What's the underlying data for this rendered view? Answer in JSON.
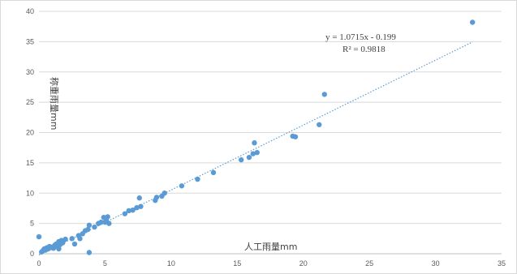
{
  "chart_data": {
    "type": "scatter",
    "xlabel": "人工雨量mm",
    "ylabel": "称重雨量mm",
    "xlim": [
      0,
      35
    ],
    "ylim": [
      0,
      40
    ],
    "xticks": [
      0,
      5,
      10,
      15,
      20,
      25,
      30,
      35
    ],
    "yticks": [
      0,
      5,
      10,
      15,
      20,
      25,
      30,
      35,
      40
    ],
    "grid": "horizontal",
    "colors": {
      "points": "#5b9bd5",
      "trendline": "#5b9bd5",
      "grid": "#d9d9d9"
    },
    "trendline": {
      "type": "linear",
      "slope": 1.0715,
      "intercept": -0.199,
      "x_range": [
        0,
        32.8
      ]
    },
    "annotations": {
      "equation": "y = 1.0715x - 0.199",
      "r_squared": "R² = 0.9818"
    },
    "points": [
      [
        0,
        2.8
      ],
      [
        0.2,
        0.3
      ],
      [
        0.3,
        0.5
      ],
      [
        0.4,
        0.8
      ],
      [
        0.5,
        0.6
      ],
      [
        0.6,
        1.0
      ],
      [
        0.7,
        0.8
      ],
      [
        0.8,
        1.2
      ],
      [
        0.9,
        1.0
      ],
      [
        1.0,
        1.1
      ],
      [
        1.1,
        0.9
      ],
      [
        1.2,
        1.4
      ],
      [
        1.3,
        1.6
      ],
      [
        1.4,
        1.2
      ],
      [
        1.5,
        2.0
      ],
      [
        1.5,
        0.8
      ],
      [
        1.6,
        1.5
      ],
      [
        1.7,
        2.2
      ],
      [
        1.8,
        1.8
      ],
      [
        2.0,
        2.4
      ],
      [
        2.5,
        2.5
      ],
      [
        2.7,
        1.6
      ],
      [
        3.0,
        3.0
      ],
      [
        3.1,
        2.5
      ],
      [
        3.3,
        3.3
      ],
      [
        3.5,
        3.8
      ],
      [
        3.7,
        4.0
      ],
      [
        3.8,
        4.7
      ],
      [
        3.8,
        0.2
      ],
      [
        4.2,
        4.4
      ],
      [
        4.5,
        5.0
      ],
      [
        4.7,
        5.2
      ],
      [
        4.9,
        6.0
      ],
      [
        5.0,
        5.2
      ],
      [
        5.1,
        5.5
      ],
      [
        5.2,
        6.1
      ],
      [
        5.3,
        5.0
      ],
      [
        6.5,
        6.6
      ],
      [
        6.8,
        7.1
      ],
      [
        7.1,
        7.2
      ],
      [
        7.4,
        7.6
      ],
      [
        7.6,
        9.2
      ],
      [
        7.7,
        7.8
      ],
      [
        8.8,
        8.8
      ],
      [
        8.9,
        9.3
      ],
      [
        9.3,
        9.5
      ],
      [
        9.5,
        10.0
      ],
      [
        10.8,
        11.2
      ],
      [
        12.0,
        12.3
      ],
      [
        13.2,
        13.4
      ],
      [
        15.3,
        15.5
      ],
      [
        15.9,
        15.9
      ],
      [
        16.2,
        16.5
      ],
      [
        16.3,
        18.3
      ],
      [
        16.5,
        16.7
      ],
      [
        19.2,
        19.4
      ],
      [
        19.4,
        19.3
      ],
      [
        21.2,
        21.3
      ],
      [
        21.6,
        26.3
      ],
      [
        32.8,
        38.2
      ]
    ]
  }
}
